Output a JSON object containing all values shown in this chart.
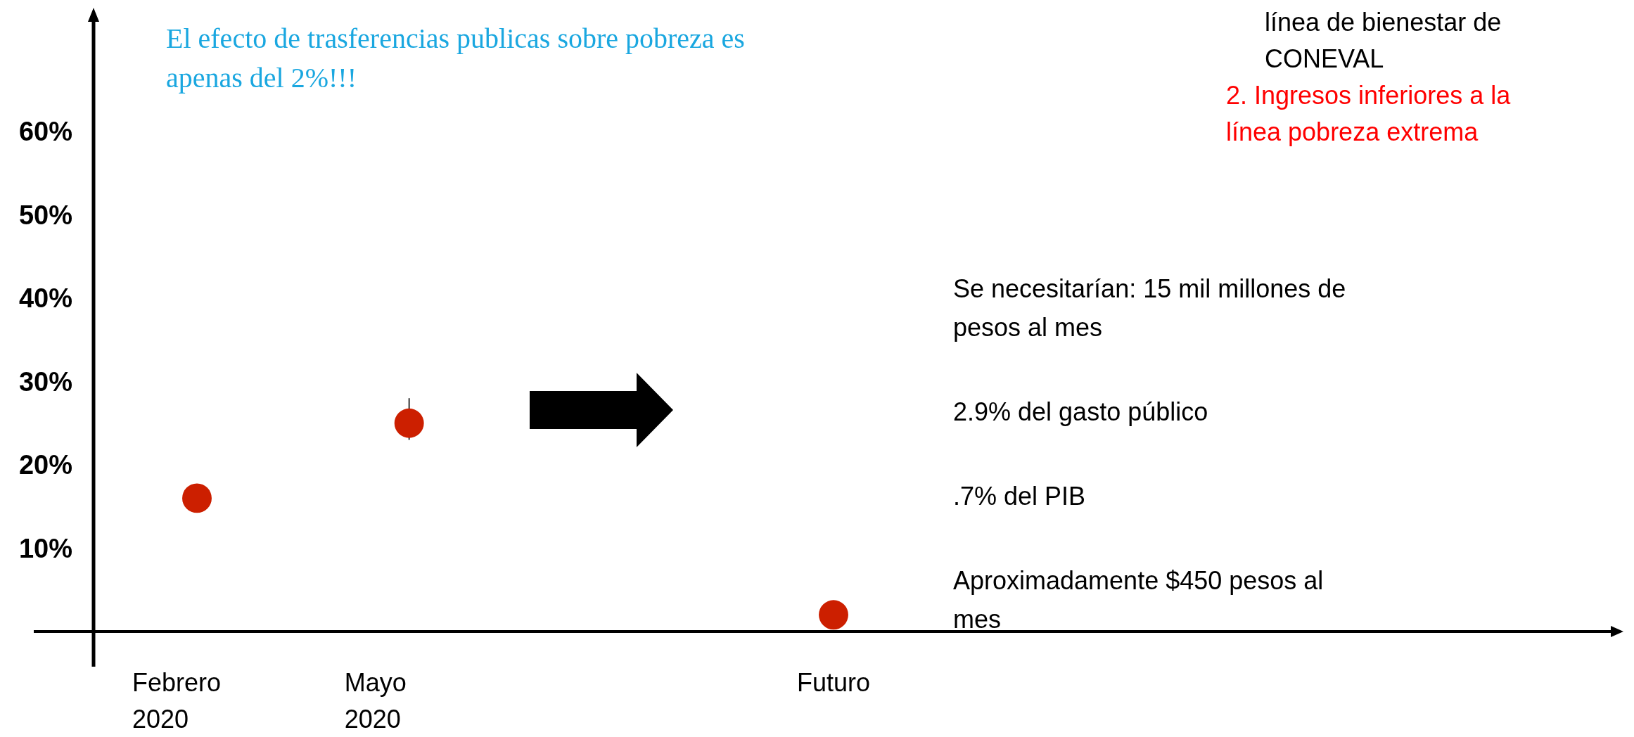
{
  "chart_data": {
    "type": "scatter",
    "categories": [
      "Febrero 2020",
      "Mayo 2020",
      null,
      "Futuro"
    ],
    "values": [
      16,
      25,
      null,
      2
    ],
    "errors": [
      null,
      [
        23,
        28
      ],
      null,
      null
    ],
    "color": "#cc1f00",
    "marker": "circle",
    "ylim": [
      0,
      74
    ],
    "yticks": [
      {
        "value": 10,
        "label": "10%"
      },
      {
        "value": 20,
        "label": "20%"
      },
      {
        "value": 30,
        "label": "30%"
      },
      {
        "value": 40,
        "label": "40%"
      },
      {
        "value": 50,
        "label": "50%"
      },
      {
        "value": 60,
        "label": "60%"
      }
    ],
    "annotations": [
      "El efecto de trasferencias publicas sobre pobreza es apenas del 2%!!!",
      "línea de bienestar de CONEVAL",
      "2. Ingresos inferiores a la línea pobreza extrema",
      "Se necesitarían: 15 mil millones de pesos al mes",
      "2.9% del gasto público",
      ".7% del PIB",
      "Aproximadamente $450 pesos al mes"
    ]
  }
}
